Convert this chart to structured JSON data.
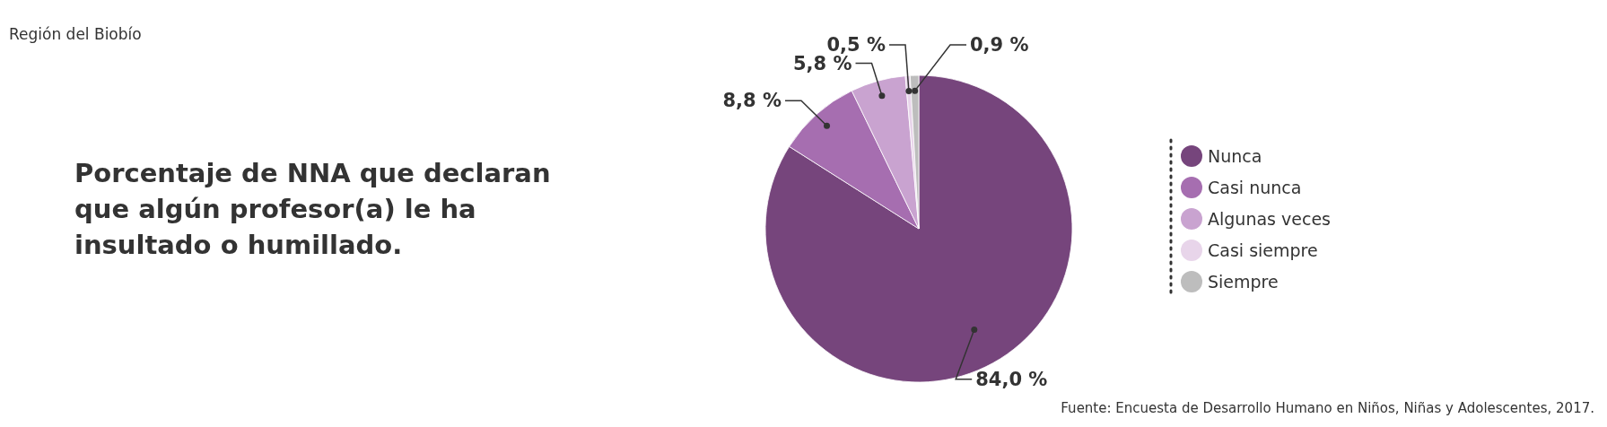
{
  "chart_data": {
    "type": "pie",
    "title": "Porcentaje de NNA que declaran que algún profesor(a) le ha insultado o humillado.",
    "subtitle": "Región del Biobío",
    "annotations": [
      "Fuente: Encuesta de Desarrollo Humano en Niños, Niñas y Adolescentes, 2017."
    ],
    "categories": [
      "Nunca",
      "Casi nunca",
      "Algunas veces",
      "Casi siempre",
      "Siempre"
    ],
    "values": [
      84.0,
      8.8,
      5.8,
      0.5,
      0.9
    ],
    "value_labels": [
      "84,0 %",
      "8,8 %",
      "5,8 %",
      "0,5 %",
      "0,9 %"
    ],
    "colors": [
      "#76457c",
      "#a66eb0",
      "#c9a3d0",
      "#e8d5ea",
      "#bdbdbd"
    ],
    "legend": "right"
  }
}
